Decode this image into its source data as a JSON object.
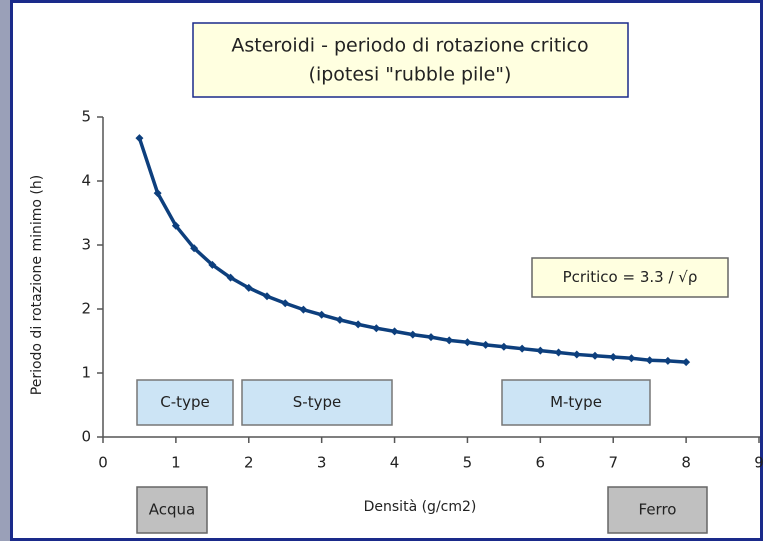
{
  "chart_data": {
    "type": "line",
    "title": "Asteroidi - periodo di rotazione critico",
    "subtitle": "(ipotesi \"rubble pile\")",
    "x_label": "Densità (g/cm2)",
    "y_label": "Periodo di rotazione minimo (h)",
    "x": [
      0.5,
      0.75,
      1,
      1.25,
      1.5,
      1.75,
      2,
      2.25,
      2.5,
      2.75,
      3,
      3.25,
      3.5,
      3.75,
      4,
      4.25,
      4.5,
      4.75,
      5,
      5.25,
      5.5,
      5.75,
      6,
      6.25,
      6.5,
      6.75,
      7,
      7.25,
      7.5,
      7.75,
      8
    ],
    "series": [
      {
        "color": "#0d3f7d",
        "values": [
          4.67,
          3.81,
          3.3,
          2.95,
          2.69,
          2.49,
          2.33,
          2.2,
          2.09,
          1.99,
          1.91,
          1.83,
          1.76,
          1.7,
          1.65,
          1.6,
          1.56,
          1.51,
          1.48,
          1.44,
          1.41,
          1.38,
          1.35,
          1.32,
          1.29,
          1.27,
          1.25,
          1.23,
          1.2,
          1.19,
          1.17
        ]
      }
    ],
    "xlim": [
      0,
      9
    ],
    "xticks": [
      0,
      1,
      2,
      3,
      4,
      5,
      6,
      7,
      8,
      9
    ],
    "ylim": [
      0,
      5
    ],
    "yticks": [
      0,
      1,
      2,
      3,
      4,
      5
    ],
    "grid": false,
    "annotations": [
      "Pcritico = 3.3 / √ρ",
      "C-type",
      "S-type",
      "M-type",
      "Acqua",
      "Ferro"
    ]
  }
}
